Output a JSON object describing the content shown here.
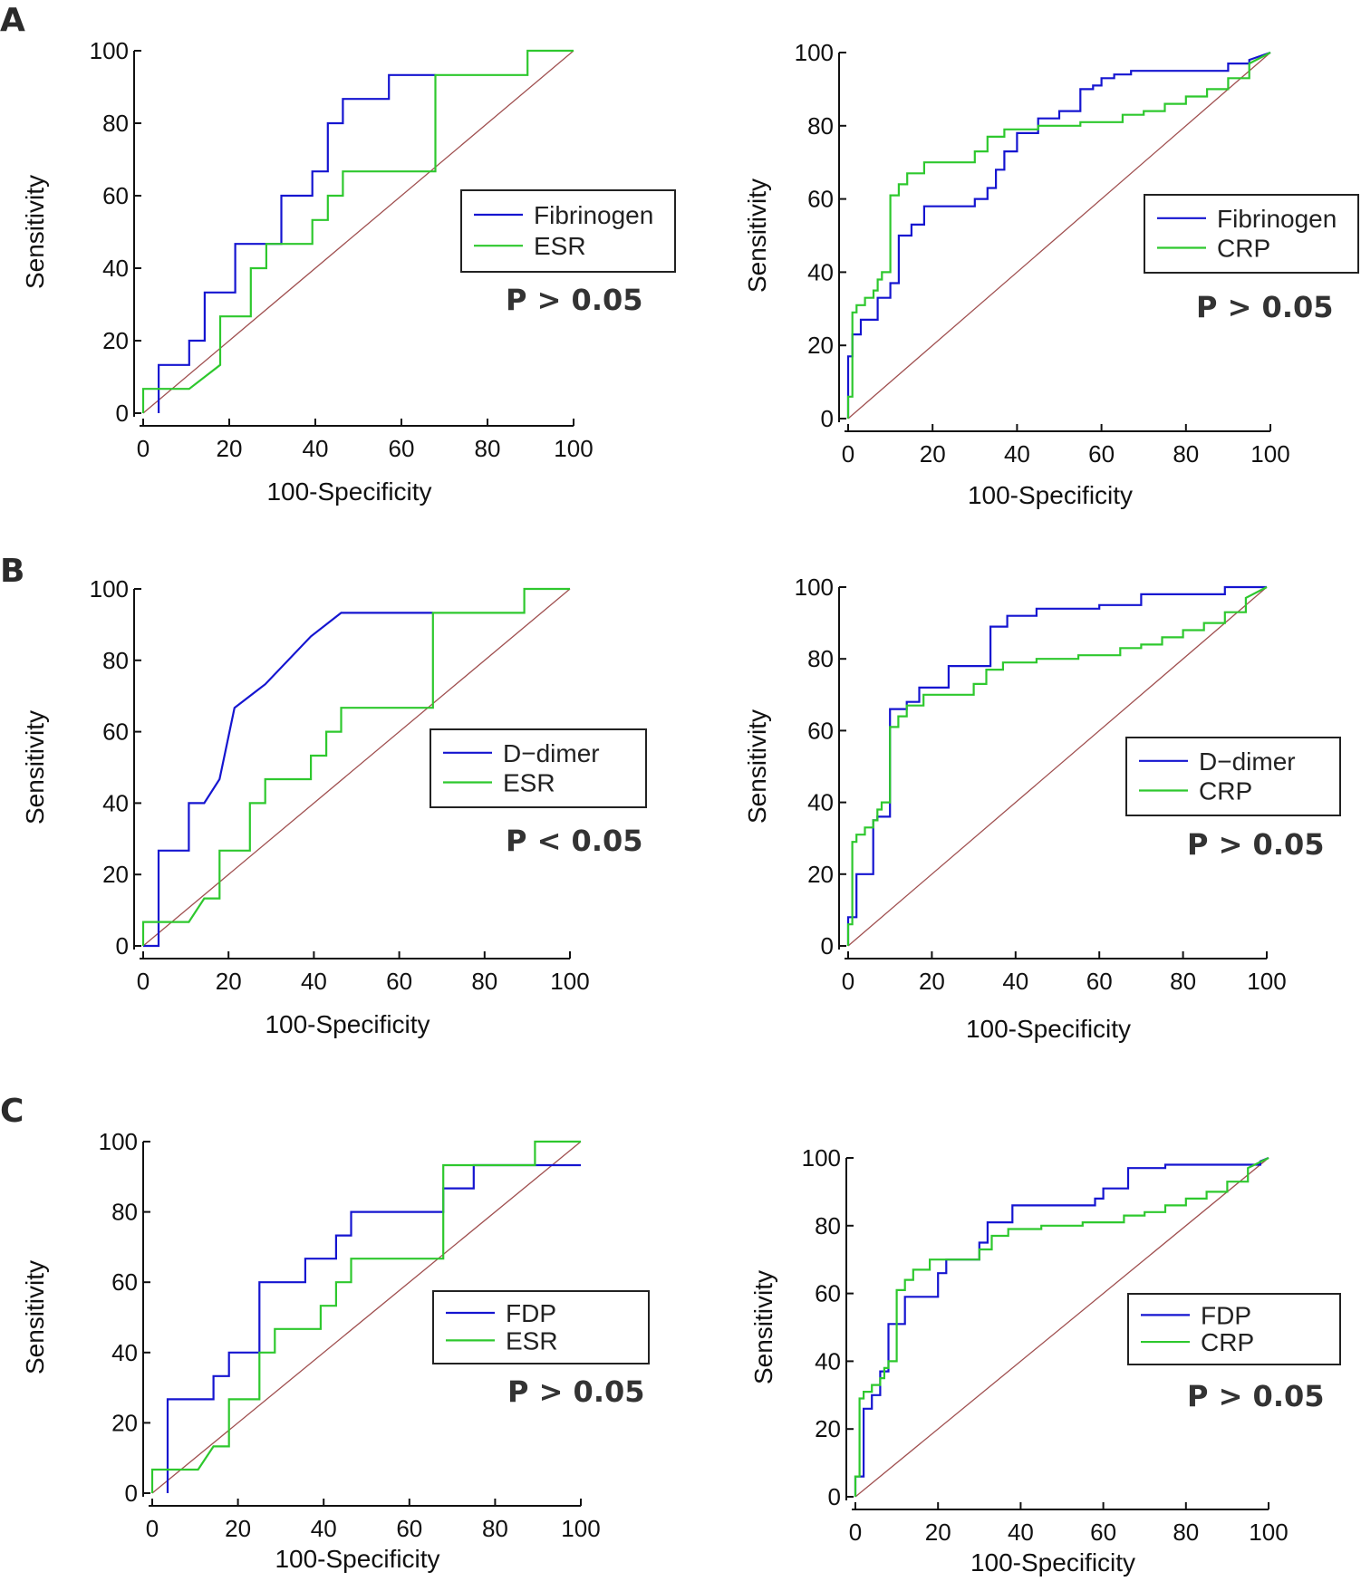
{
  "colors": {
    "blue": "#1515d0",
    "green": "#2ec82e",
    "diagonal": "#a05050",
    "axis": "#111111"
  },
  "chart_data": [
    {
      "type": "line",
      "panel_label": "A",
      "xlabel": "100-Specificity",
      "ylabel": "Sensitivity",
      "xlim": [
        0,
        100
      ],
      "ylim": [
        0,
        100
      ],
      "xticks": [
        "0",
        "20",
        "40",
        "60",
        "80",
        "100"
      ],
      "yticks": [
        "0",
        "20",
        "40",
        "60",
        "80",
        "100"
      ],
      "legend": [
        "Fibrinogen",
        "ESR"
      ],
      "annotation": "P > 0.05",
      "series": [
        {
          "name": "Fibrinogen",
          "color": "blue",
          "x": [
            3.6,
            3.6,
            10.7,
            10.7,
            14.3,
            14.3,
            21.4,
            21.4,
            32.1,
            32.1,
            39.3,
            39.3,
            42.9,
            42.9,
            46.4,
            46.4,
            50,
            50,
            57.1,
            57.1,
            67.9
          ],
          "y": [
            0,
            13.3,
            13.3,
            20,
            20,
            33.3,
            33.3,
            46.7,
            46.7,
            60,
            60,
            66.7,
            66.7,
            80,
            80,
            86.7,
            86.7,
            86.7,
            86.7,
            93.3,
            93.3
          ]
        },
        {
          "name": "ESR",
          "color": "green",
          "x": [
            0,
            0,
            10.7,
            17.9,
            17.9,
            25,
            25,
            28.6,
            28.6,
            39.3,
            39.3,
            42.9,
            42.9,
            46.4,
            46.4,
            50,
            50,
            67.9,
            67.9,
            89.3,
            89.3,
            100
          ],
          "y": [
            0,
            6.7,
            6.7,
            13.3,
            26.7,
            26.7,
            40,
            40,
            46.7,
            46.7,
            53.3,
            53.3,
            60,
            60,
            66.7,
            66.7,
            66.7,
            66.7,
            93.3,
            93.3,
            100,
            100
          ]
        }
      ]
    },
    {
      "type": "line",
      "panel_label": "",
      "xlabel": "100-Specificity",
      "ylabel": "Sensitivity",
      "xlim": [
        0,
        100
      ],
      "ylim": [
        0,
        100
      ],
      "xticks": [
        "0",
        "20",
        "40",
        "60",
        "80",
        "100"
      ],
      "yticks": [
        "0",
        "20",
        "40",
        "60",
        "80",
        "100"
      ],
      "legend": [
        "Fibrinogen",
        "CRP"
      ],
      "annotation": "P > 0.05",
      "series": [
        {
          "name": "Fibrinogen",
          "color": "blue",
          "x": [
            0,
            0,
            1,
            1,
            3,
            3,
            7,
            7,
            10,
            10,
            12,
            12,
            15,
            15,
            18,
            18,
            30,
            30,
            33,
            33,
            35,
            35,
            37,
            37,
            40,
            40,
            45,
            45,
            50,
            50,
            55,
            55,
            58,
            58,
            60,
            60,
            63,
            63,
            67,
            67,
            90,
            90,
            95,
            95,
            100
          ],
          "y": [
            0,
            17,
            17,
            23,
            23,
            27,
            27,
            33,
            33,
            37,
            37,
            50,
            50,
            53,
            53,
            58,
            58,
            60,
            60,
            63,
            63,
            68,
            68,
            73,
            73,
            78,
            78,
            82,
            82,
            84,
            84,
            90,
            90,
            91,
            91,
            93,
            93,
            94,
            94,
            95,
            95,
            97,
            97,
            98,
            100
          ]
        },
        {
          "name": "CRP",
          "color": "green",
          "x": [
            0,
            0,
            1,
            1,
            2,
            2,
            4,
            4,
            6,
            6,
            7,
            7,
            8,
            8,
            10,
            10,
            12,
            12,
            14,
            14,
            18,
            18,
            30,
            30,
            33,
            33,
            37,
            37,
            45,
            45,
            55,
            55,
            65,
            65,
            70,
            70,
            75,
            75,
            80,
            80,
            85,
            85,
            90,
            90,
            95,
            95,
            100
          ],
          "y": [
            0,
            6,
            6,
            29,
            29,
            31,
            31,
            33,
            33,
            35,
            35,
            38,
            38,
            40,
            40,
            61,
            61,
            64,
            64,
            67,
            67,
            70,
            70,
            73,
            73,
            77,
            77,
            79,
            79,
            80,
            80,
            81,
            81,
            83,
            83,
            84,
            84,
            86,
            86,
            88,
            88,
            90,
            90,
            93,
            93,
            97,
            100
          ]
        }
      ]
    },
    {
      "type": "line",
      "panel_label": "B",
      "xlabel": "100-Specificity",
      "ylabel": "Sensitivity",
      "xlim": [
        0,
        100
      ],
      "ylim": [
        0,
        100
      ],
      "xticks": [
        "0",
        "20",
        "40",
        "60",
        "80",
        "100"
      ],
      "yticks": [
        "0",
        "20",
        "40",
        "60",
        "80",
        "100"
      ],
      "legend": [
        "D−dimer",
        "ESR"
      ],
      "annotation": "P < 0.05",
      "series": [
        {
          "name": "D−dimer",
          "color": "blue",
          "x": [
            0,
            3.6,
            3.6,
            10.7,
            10.7,
            14.3,
            14.3,
            17.9,
            17.9,
            21.4,
            21.4,
            28.6,
            28.6,
            39.3,
            39.3,
            46.4,
            46.4,
            67.9
          ],
          "y": [
            0,
            0,
            26.7,
            26.7,
            40,
            40,
            40,
            46.7,
            46.7,
            66.7,
            66.7,
            73.3,
            73.3,
            86.7,
            86.7,
            93.3,
            93.3,
            93.3
          ]
        },
        {
          "name": "ESR",
          "color": "green",
          "x": [
            0,
            0,
            10.7,
            14.3,
            14.3,
            17.9,
            17.9,
            25,
            25,
            28.6,
            28.6,
            39.3,
            39.3,
            42.9,
            42.9,
            46.4,
            46.4,
            50,
            50,
            67.9,
            67.9,
            89.3,
            89.3,
            100
          ],
          "y": [
            0,
            6.7,
            6.7,
            13.3,
            13.3,
            13.3,
            26.7,
            26.7,
            40,
            40,
            46.7,
            46.7,
            53.3,
            53.3,
            60,
            60,
            66.7,
            66.7,
            66.7,
            66.7,
            93.3,
            93.3,
            100,
            100
          ]
        }
      ]
    },
    {
      "type": "line",
      "panel_label": "",
      "xlabel": "100-Specificity",
      "ylabel": "Sensitivity",
      "xlim": [
        0,
        100
      ],
      "ylim": [
        0,
        100
      ],
      "xticks": [
        "0",
        "20",
        "40",
        "60",
        "80",
        "100"
      ],
      "yticks": [
        "0",
        "20",
        "40",
        "60",
        "80",
        "100"
      ],
      "legend": [
        "D−dimer",
        "CRP"
      ],
      "annotation": "P > 0.05",
      "series": [
        {
          "name": "D−dimer",
          "color": "blue",
          "x": [
            0,
            0,
            2,
            2,
            6,
            6,
            7,
            7,
            10,
            10,
            14,
            14,
            17,
            17,
            24,
            24,
            34,
            34,
            38,
            38,
            45,
            45,
            60,
            60,
            70,
            70,
            90,
            90,
            100
          ],
          "y": [
            0,
            8,
            8,
            20,
            20,
            35,
            35,
            36,
            36,
            66,
            66,
            68,
            68,
            72,
            72,
            78,
            78,
            89,
            89,
            92,
            92,
            94,
            94,
            95,
            95,
            98,
            98,
            100,
            100
          ]
        },
        {
          "name": "CRP",
          "color": "green",
          "x": [
            0,
            0,
            1,
            1,
            2,
            2,
            4,
            4,
            6,
            6,
            7,
            7,
            8,
            8,
            10,
            10,
            12,
            12,
            14,
            14,
            18,
            18,
            30,
            30,
            33,
            33,
            37,
            37,
            45,
            45,
            55,
            55,
            65,
            65,
            70,
            70,
            75,
            75,
            80,
            80,
            85,
            85,
            90,
            90,
            95,
            95,
            100
          ],
          "y": [
            0,
            6,
            6,
            29,
            29,
            31,
            31,
            33,
            33,
            35,
            35,
            38,
            38,
            40,
            40,
            61,
            61,
            64,
            64,
            67,
            67,
            70,
            70,
            73,
            73,
            77,
            77,
            79,
            79,
            80,
            80,
            81,
            81,
            83,
            83,
            84,
            84,
            86,
            86,
            88,
            88,
            90,
            90,
            93,
            93,
            97,
            100
          ]
        }
      ]
    },
    {
      "type": "line",
      "panel_label": "C",
      "xlabel": "100-Specificity",
      "ylabel": "Sensitivity",
      "xlim": [
        0,
        100
      ],
      "ylim": [
        0,
        100
      ],
      "xticks": [
        "0",
        "20",
        "40",
        "60",
        "80",
        "100"
      ],
      "yticks": [
        "0",
        "20",
        "40",
        "60",
        "80",
        "100"
      ],
      "legend": [
        "FDP",
        "ESR"
      ],
      "annotation": "P > 0.05",
      "series": [
        {
          "name": "FDP",
          "color": "blue",
          "x": [
            3.6,
            3.6,
            14.3,
            14.3,
            17.9,
            17.9,
            25,
            25,
            35.7,
            35.7,
            42.9,
            42.9,
            46.4,
            46.4,
            50,
            50,
            67.9,
            67.9,
            75,
            75,
            100
          ],
          "y": [
            0,
            26.7,
            26.7,
            33.3,
            33.3,
            40,
            40,
            60,
            60,
            66.7,
            66.7,
            73.3,
            73.3,
            80,
            80,
            80,
            80,
            86.7,
            86.7,
            93.3,
            93.3
          ]
        },
        {
          "name": "ESR",
          "color": "green",
          "x": [
            0,
            0,
            10.7,
            14.3,
            14.3,
            17.9,
            17.9,
            25,
            25,
            28.6,
            28.6,
            39.3,
            39.3,
            42.9,
            42.9,
            46.4,
            46.4,
            50,
            50,
            67.9,
            67.9,
            89.3,
            89.3,
            100
          ],
          "y": [
            0,
            6.7,
            6.7,
            13.3,
            13.3,
            13.3,
            26.7,
            26.7,
            40,
            40,
            46.7,
            46.7,
            53.3,
            53.3,
            60,
            60,
            66.7,
            66.7,
            66.7,
            66.7,
            93.3,
            93.3,
            100,
            100
          ]
        }
      ]
    },
    {
      "type": "line",
      "panel_label": "",
      "xlabel": "100-Specificity",
      "ylabel": "Sensitivity",
      "xlim": [
        0,
        100
      ],
      "ylim": [
        0,
        100
      ],
      "xticks": [
        "0",
        "20",
        "40",
        "60",
        "80",
        "100"
      ],
      "yticks": [
        "0",
        "20",
        "40",
        "60",
        "80",
        "100"
      ],
      "legend": [
        "FDP",
        "CRP"
      ],
      "annotation": "P > 0.05",
      "series": [
        {
          "name": "FDP",
          "color": "blue",
          "x": [
            0,
            0,
            2,
            2,
            4,
            4,
            6,
            6,
            8,
            8,
            12,
            12,
            20,
            20,
            22,
            22,
            30,
            30,
            32,
            32,
            38,
            38,
            58,
            58,
            60,
            60,
            66,
            66,
            75,
            75,
            98,
            98,
            100
          ],
          "y": [
            0,
            6,
            6,
            26,
            26,
            30,
            30,
            37,
            37,
            51,
            51,
            59,
            59,
            66,
            66,
            70,
            70,
            75,
            75,
            81,
            81,
            86,
            86,
            88,
            88,
            91,
            91,
            97,
            97,
            98,
            98,
            99,
            100
          ]
        },
        {
          "name": "CRP",
          "color": "green",
          "x": [
            0,
            0,
            1,
            1,
            2,
            2,
            4,
            4,
            6,
            6,
            7,
            7,
            8,
            8,
            10,
            10,
            12,
            12,
            14,
            14,
            18,
            18,
            30,
            30,
            33,
            33,
            37,
            37,
            45,
            45,
            55,
            55,
            65,
            65,
            70,
            70,
            75,
            75,
            80,
            80,
            85,
            85,
            90,
            90,
            95,
            95,
            100
          ],
          "y": [
            0,
            6,
            6,
            29,
            29,
            31,
            31,
            33,
            33,
            35,
            35,
            38,
            38,
            40,
            40,
            61,
            61,
            64,
            64,
            67,
            67,
            70,
            70,
            73,
            73,
            77,
            77,
            79,
            79,
            80,
            80,
            81,
            81,
            83,
            83,
            84,
            84,
            86,
            86,
            88,
            88,
            90,
            90,
            93,
            93,
            97,
            100
          ]
        }
      ]
    }
  ]
}
